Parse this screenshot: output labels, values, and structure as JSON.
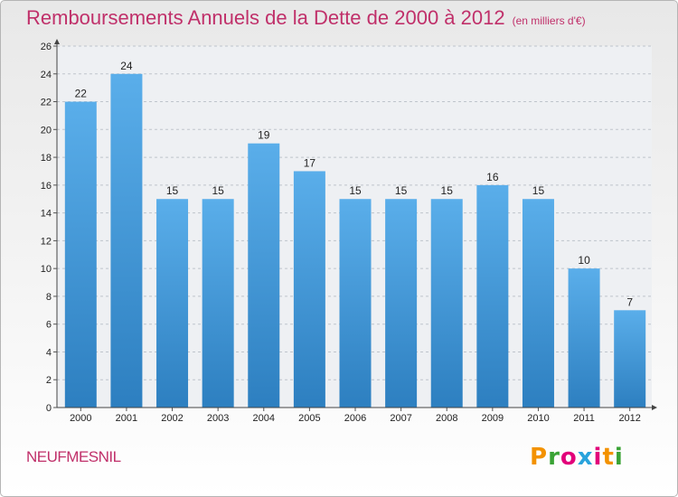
{
  "header": {
    "title": "Remboursements Annuels de la Dette de 2000 à 2012",
    "unit": "(en milliers d'€)"
  },
  "footer": {
    "commune": "NEUFMESNIL",
    "logo_text": "Proxiti",
    "logo_colors": [
      "#f39200",
      "#3aa335",
      "#e2007a",
      "#29a3dc",
      "#e2007a",
      "#f39200",
      "#3aa335"
    ]
  },
  "chart_data": {
    "type": "bar",
    "categories": [
      "2000",
      "2001",
      "2002",
      "2003",
      "2004",
      "2005",
      "2006",
      "2007",
      "2008",
      "2009",
      "2010",
      "2011",
      "2012"
    ],
    "values": [
      22,
      24,
      15,
      15,
      19,
      17,
      15,
      15,
      15,
      16,
      15,
      10,
      7
    ],
    "ylim": [
      0,
      26
    ],
    "yticks": [
      0,
      2,
      4,
      6,
      8,
      10,
      12,
      14,
      16,
      18,
      20,
      22,
      24,
      26
    ],
    "bar_color_top": "#5aaeea",
    "bar_color_bottom": "#2d7fc0",
    "xlabel": "",
    "ylabel": ""
  }
}
